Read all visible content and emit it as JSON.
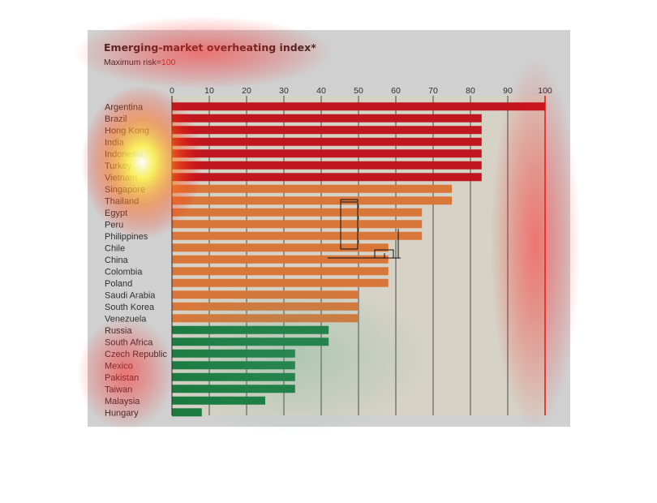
{
  "chart_data": {
    "type": "bar",
    "orientation": "horizontal",
    "title": "Emerging-market overheating index*",
    "subtitle_prefix": "Maximum risk=",
    "subtitle_value": "100",
    "xlim": [
      0,
      100
    ],
    "x_ticks": [
      "0",
      "10",
      "20",
      "30",
      "40",
      "50",
      "60",
      "70",
      "80",
      "90",
      "100"
    ],
    "grid": true,
    "categories": [
      "Argentina",
      "Brazil",
      "Hong Kong",
      "India",
      "Indonesia",
      "Turkey",
      "Vietnam",
      "Singapore",
      "Thailand",
      "Egypt",
      "Peru",
      "Philippines",
      "Chile",
      "China",
      "Colombia",
      "Poland",
      "Saudi Arabia",
      "South Korea",
      "Venezuela",
      "Russia",
      "South Africa",
      "Czech Republic",
      "Mexico",
      "Pakistan",
      "Taiwan",
      "Malaysia",
      "Hungary"
    ],
    "values": [
      100,
      83,
      83,
      83,
      83,
      83,
      83,
      75,
      75,
      67,
      67,
      67,
      58,
      58,
      58,
      58,
      50,
      50,
      50,
      42,
      42,
      33,
      33,
      33,
      33,
      25,
      8
    ],
    "colors": {
      "high": "#c0161f",
      "medium": "#d9773a",
      "low": "#1b7a3e",
      "axis_accent": "#d8261d"
    }
  }
}
